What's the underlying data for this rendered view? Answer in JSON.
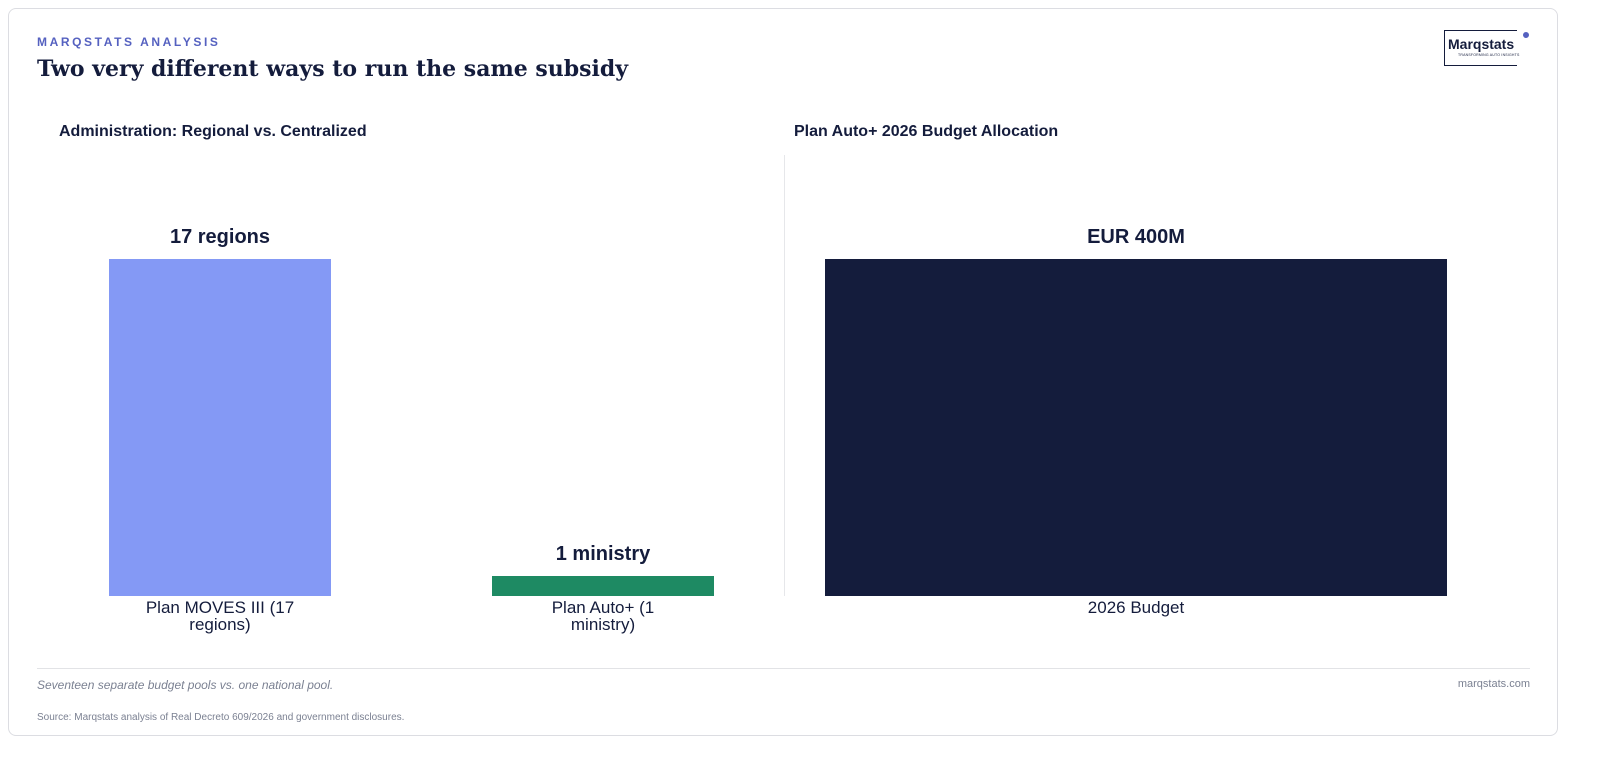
{
  "header": {
    "kicker": "MARQSTATS ANALYSIS",
    "title": "Two very different ways to run the same subsidy"
  },
  "logo": {
    "name": "Marqstats",
    "tagline": "TRANSFORMING AUTO INSIGHTS"
  },
  "chart_data": [
    {
      "type": "bar",
      "title": "Administration: Regional vs. Centralized",
      "categories": [
        "Plan MOVES III (17 regions)",
        "Plan Auto+ (1 ministry)"
      ],
      "values": [
        17,
        1
      ],
      "value_labels": [
        "17 regions",
        "1 ministry"
      ],
      "colors": [
        "#8499f5",
        "#1e8a63"
      ]
    },
    {
      "type": "bar",
      "title": "Plan Auto+ 2026 Budget Allocation",
      "categories": [
        "2026 Budget"
      ],
      "values": [
        400
      ],
      "value_labels": [
        "EUR 400M"
      ],
      "colors": [
        "#141c3c"
      ]
    }
  ],
  "footer": {
    "note": "Seventeen separate budget pools vs. one national pool.",
    "site": "marqstats.com",
    "source": "Source: Marqstats analysis of Real Decreto 609/2026 and government disclosures."
  }
}
